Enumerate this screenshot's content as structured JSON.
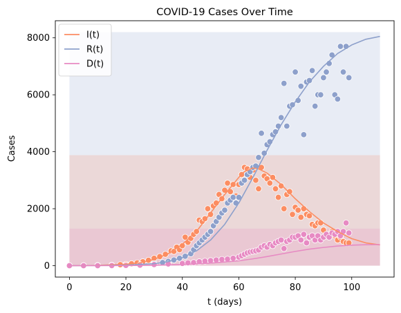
{
  "chart_data": {
    "type": "line",
    "title": "COVID-19 Cases Over Time",
    "xlabel": "t (days)",
    "ylabel": "Cases",
    "xlim": [
      -5,
      115
    ],
    "ylim": [
      -400,
      8600
    ],
    "xticks": [
      0,
      20,
      40,
      60,
      80,
      100
    ],
    "yticks": [
      0,
      2000,
      4000,
      6000,
      8000
    ],
    "grid": false,
    "legend": "top-left",
    "bands": [
      {
        "series": "R(t)",
        "x": [
          0,
          110
        ],
        "y": [
          0,
          8200
        ],
        "color": "#8da0cb"
      },
      {
        "series": "I(t)",
        "x": [
          0,
          110
        ],
        "y": [
          0,
          3880
        ],
        "color": "#fc8d62"
      },
      {
        "series": "D(t)",
        "x": [
          0,
          110
        ],
        "y": [
          0,
          1300
        ],
        "color": "#e78ac3"
      }
    ],
    "series": [
      {
        "name": "I(t)",
        "color": "#fc8d62",
        "curve": {
          "x": [
            0,
            10,
            20,
            25,
            30,
            35,
            40,
            45,
            50,
            55,
            60,
            62,
            65,
            67,
            70,
            75,
            80,
            85,
            90,
            95,
            100,
            105,
            110
          ],
          "y": [
            0,
            10,
            50,
            100,
            220,
            420,
            750,
            1200,
            1850,
            2500,
            3100,
            3300,
            3430,
            3400,
            3250,
            2850,
            2350,
            1900,
            1500,
            1200,
            950,
            800,
            730
          ]
        },
        "points": {
          "x": [
            0,
            5,
            10,
            15,
            18,
            20,
            22,
            24,
            26,
            28,
            30,
            32,
            34,
            36,
            37,
            38,
            39,
            40,
            41,
            42,
            43,
            44,
            45,
            46,
            47,
            48,
            49,
            50,
            51,
            52,
            53,
            54,
            55,
            56,
            57,
            58,
            59,
            60,
            61,
            62,
            63,
            64,
            65,
            66,
            67,
            68,
            69,
            70,
            71,
            72,
            73,
            74,
            75,
            76,
            77,
            78,
            79,
            80,
            81,
            82,
            83,
            84,
            85,
            86,
            87,
            88,
            89,
            90,
            91,
            92,
            93,
            94,
            95,
            96,
            97,
            98,
            99
          ],
          "y": [
            0,
            5,
            10,
            20,
            35,
            50,
            70,
            100,
            140,
            190,
            260,
            320,
            400,
            520,
            500,
            650,
            560,
            700,
            1000,
            820,
            960,
            1100,
            1200,
            1600,
            1550,
            1650,
            2000,
            1800,
            2100,
            2200,
            2500,
            2350,
            2650,
            2900,
            2600,
            2850,
            2450,
            2850,
            3200,
            3450,
            3400,
            3100,
            3350,
            3000,
            2700,
            3450,
            3150,
            3050,
            2900,
            3100,
            2700,
            2400,
            2800,
            2000,
            2500,
            2600,
            1800,
            2050,
            1950,
            1700,
            2000,
            1800,
            1750,
            1450,
            1400,
            1500,
            1500,
            1250,
            1100,
            1000,
            1200,
            1050,
            900,
            1000,
            850,
            800,
            800
          ]
        }
      },
      {
        "name": "R(t)",
        "color": "#8da0cb",
        "curve": {
          "x": [
            0,
            10,
            20,
            30,
            35,
            40,
            45,
            50,
            55,
            60,
            65,
            70,
            75,
            80,
            85,
            90,
            95,
            100,
            105,
            110
          ],
          "y": [
            0,
            5,
            20,
            70,
            140,
            280,
            520,
            900,
            1450,
            2200,
            3100,
            4050,
            4950,
            5750,
            6450,
            7000,
            7450,
            7750,
            7950,
            8050
          ]
        },
        "points": {
          "x": [
            0,
            5,
            10,
            15,
            20,
            25,
            30,
            33,
            35,
            37,
            39,
            41,
            43,
            44,
            45,
            46,
            47,
            48,
            49,
            50,
            51,
            52,
            53,
            54,
            55,
            56,
            57,
            58,
            59,
            60,
            61,
            62,
            63,
            64,
            65,
            66,
            67,
            68,
            69,
            70,
            71,
            72,
            73,
            74,
            75,
            76,
            77,
            78,
            79,
            80,
            81,
            82,
            83,
            84,
            85,
            86,
            87,
            88,
            89,
            90,
            91,
            92,
            93,
            94,
            95,
            96,
            97,
            98,
            99
          ],
          "y": [
            0,
            0,
            5,
            10,
            20,
            40,
            70,
            110,
            150,
            200,
            260,
            330,
            420,
            560,
            700,
            800,
            900,
            1000,
            1100,
            1200,
            1400,
            1550,
            1700,
            1850,
            1950,
            2200,
            2300,
            2400,
            2200,
            2400,
            2900,
            3000,
            3200,
            3300,
            3450,
            3500,
            3800,
            4650,
            3950,
            4250,
            4350,
            4600,
            4700,
            4900,
            5200,
            6400,
            4900,
            5600,
            5650,
            6800,
            5800,
            6300,
            4600,
            6450,
            6500,
            6850,
            5600,
            6000,
            6000,
            6600,
            6800,
            7100,
            7400,
            6000,
            5850,
            7700,
            6800,
            7700,
            6600
          ]
        }
      },
      {
        "name": "D(t)",
        "color": "#e78ac3",
        "curve": {
          "x": [
            0,
            20,
            30,
            40,
            50,
            60,
            65,
            70,
            75,
            80,
            85,
            90,
            95,
            100,
            105,
            110
          ],
          "y": [
            0,
            5,
            15,
            40,
            90,
            170,
            240,
            320,
            410,
            500,
            580,
            640,
            690,
            720,
            735,
            740
          ]
        },
        "points": {
          "x": [
            0,
            5,
            10,
            15,
            20,
            25,
            30,
            35,
            40,
            42,
            44,
            46,
            48,
            50,
            52,
            54,
            56,
            58,
            60,
            61,
            62,
            63,
            64,
            65,
            66,
            67,
            68,
            69,
            70,
            71,
            72,
            73,
            74,
            75,
            76,
            77,
            78,
            79,
            80,
            81,
            82,
            83,
            84,
            85,
            86,
            87,
            88,
            89,
            90,
            91,
            92,
            93,
            94,
            95,
            96,
            97,
            98,
            99
          ],
          "y": [
            0,
            0,
            0,
            5,
            10,
            20,
            40,
            60,
            80,
            100,
            110,
            140,
            160,
            180,
            200,
            220,
            230,
            260,
            300,
            350,
            400,
            450,
            480,
            500,
            520,
            550,
            650,
            700,
            650,
            750,
            700,
            800,
            850,
            900,
            600,
            850,
            900,
            1000,
            1000,
            1050,
            900,
            1100,
            800,
            1000,
            1050,
            900,
            1050,
            900,
            1000,
            1100,
            1000,
            1150,
            1100,
            1200,
            1050,
            1200,
            1500,
            1150
          ]
        }
      }
    ]
  }
}
